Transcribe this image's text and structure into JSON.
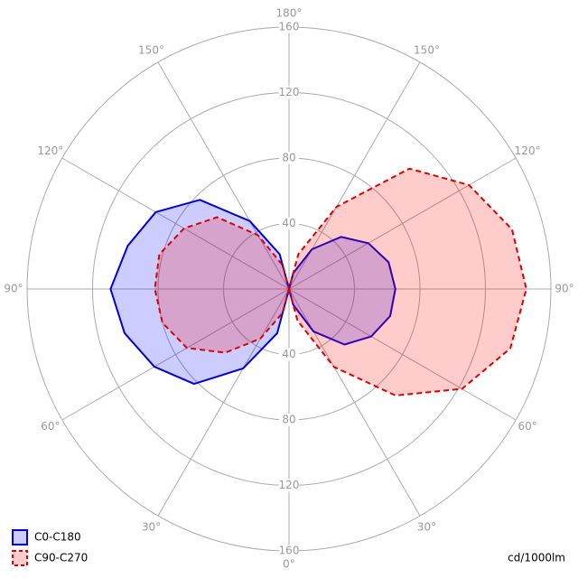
{
  "chart_data": {
    "type": "polar",
    "x": [
      0,
      15,
      30,
      45,
      60,
      75,
      90,
      105,
      120,
      135,
      150,
      165,
      180,
      195,
      210,
      225,
      240,
      255,
      270,
      285,
      300,
      315,
      330,
      345
    ],
    "series": [
      {
        "name": "C0-C180",
        "color": "#0000dd",
        "fill": "rgba(0,0,255,0.2)",
        "dash": false,
        "values": [
          0,
          10,
          30,
          48,
          58,
          64,
          65,
          63,
          56,
          45,
          28,
          10,
          0,
          22,
          48,
          77,
          94,
          102,
          109,
          104,
          95,
          82,
          56,
          28
        ]
      },
      {
        "name": "C90-C270",
        "color": "#dd0000",
        "fill": "rgba(255,0,0,0.2)",
        "dash": true,
        "values": [
          0,
          20,
          55,
          92,
          122,
          140,
          145,
          141,
          127,
          104,
          58,
          22,
          0,
          15,
          38,
          62,
          74,
          82,
          82,
          80,
          72,
          55,
          35,
          15
        ]
      }
    ],
    "rlim": [
      0,
      160
    ],
    "rticks": [
      40,
      80,
      120,
      160
    ],
    "angle_ticks": [
      {
        "value": 0,
        "label": "0°"
      },
      {
        "value": 30,
        "label": "30°"
      },
      {
        "value": 60,
        "label": "60°"
      },
      {
        "value": 90,
        "label": "90°"
      },
      {
        "value": 120,
        "label": "120°"
      },
      {
        "value": 150,
        "label": "150°"
      },
      {
        "value": 180,
        "label": "180°"
      },
      {
        "value": 210,
        "label": "150°"
      },
      {
        "value": 240,
        "label": "120°"
      },
      {
        "value": 270,
        "label": "90°"
      },
      {
        "value": 300,
        "label": "60°"
      },
      {
        "value": 330,
        "label": "30°"
      }
    ],
    "unit_label": "cd/1000lm",
    "legend": "bottom-left"
  }
}
